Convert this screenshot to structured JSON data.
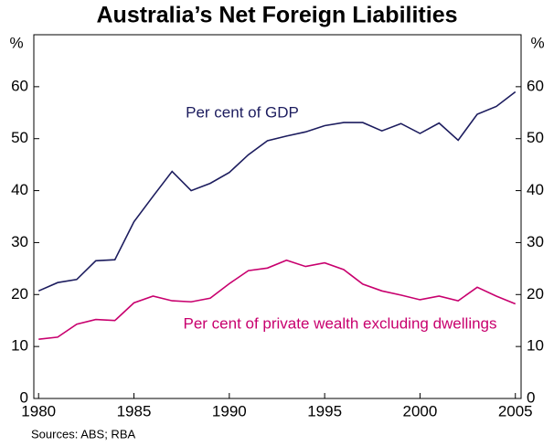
{
  "chart_data": {
    "type": "line",
    "title": "Australia’s Net Foreign Liabilities",
    "y_unit": "%",
    "source": "Sources: ABS; RBA",
    "x": [
      1980,
      1981,
      1982,
      1983,
      1984,
      1985,
      1986,
      1987,
      1988,
      1989,
      1990,
      1991,
      1992,
      1993,
      1994,
      1995,
      1996,
      1997,
      1998,
      1999,
      2000,
      2001,
      2002,
      2003,
      2004,
      2005
    ],
    "series": [
      {
        "name": "Per cent of GDP",
        "color": "#1c1c5e",
        "values": [
          20.7,
          22.3,
          22.9,
          26.5,
          26.7,
          34.0,
          38.9,
          43.7,
          40.0,
          41.4,
          43.5,
          46.9,
          49.6,
          50.5,
          51.3,
          52.5,
          53.1,
          53.1,
          51.5,
          52.9,
          51.0,
          53.0,
          49.7,
          54.7,
          56.2,
          59.0
        ]
      },
      {
        "name": "Per cent of private wealth excluding dwellings",
        "color": "#c8006e",
        "values": [
          11.4,
          11.8,
          14.3,
          15.2,
          15.0,
          18.4,
          19.7,
          18.8,
          18.6,
          19.3,
          22.1,
          24.6,
          25.1,
          26.6,
          25.4,
          26.1,
          24.8,
          22.0,
          20.7,
          19.9,
          19.0,
          19.7,
          18.8,
          21.4,
          19.7,
          18.2
        ]
      }
    ],
    "xlim": [
      1979.75,
      2005.3
    ],
    "xticks": [
      1980,
      1985,
      1990,
      1995,
      2000,
      2005
    ],
    "ylim": [
      0,
      70
    ],
    "yticks": [
      0,
      10,
      20,
      30,
      40,
      50,
      60
    ]
  }
}
